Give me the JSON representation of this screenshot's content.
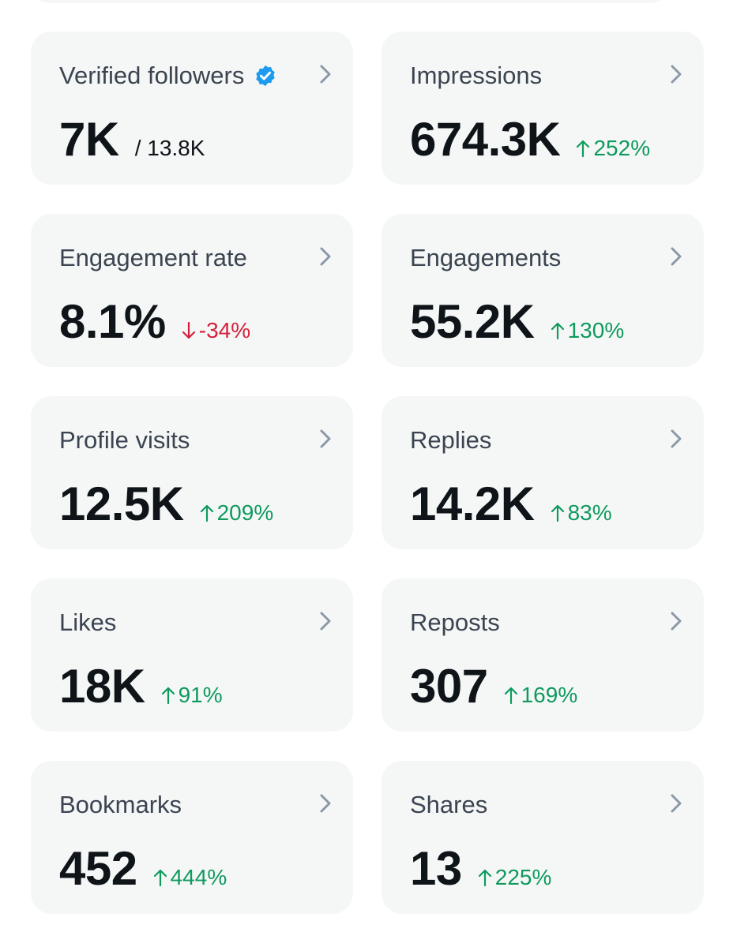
{
  "colors": {
    "card_background": "#f5f7f7",
    "title_text": "#3b4450",
    "value_text": "#0f1419",
    "positive": "#0f9a5d",
    "negative": "#d61f3a",
    "verified_badge": "#1d9bf0",
    "chevron": "#8b98a5"
  },
  "metrics": [
    {
      "title": "Verified followers",
      "value": "7K",
      "total": "/ 13.8K",
      "verified_icon": "verified-badge-icon"
    },
    {
      "title": "Impressions",
      "value": "674.3K",
      "change": "252%",
      "direction": "up"
    },
    {
      "title": "Engagement rate",
      "value": "8.1%",
      "change": "-34%",
      "direction": "down"
    },
    {
      "title": "Engagements",
      "value": "55.2K",
      "change": "130%",
      "direction": "up"
    },
    {
      "title": "Profile visits",
      "value": "12.5K",
      "change": "209%",
      "direction": "up"
    },
    {
      "title": "Replies",
      "value": "14.2K",
      "change": "83%",
      "direction": "up"
    },
    {
      "title": "Likes",
      "value": "18K",
      "change": "91%",
      "direction": "up"
    },
    {
      "title": "Reposts",
      "value": "307",
      "change": "169%",
      "direction": "up"
    },
    {
      "title": "Bookmarks",
      "value": "452",
      "change": "444%",
      "direction": "up"
    },
    {
      "title": "Shares",
      "value": "13",
      "change": "225%",
      "direction": "up"
    }
  ]
}
